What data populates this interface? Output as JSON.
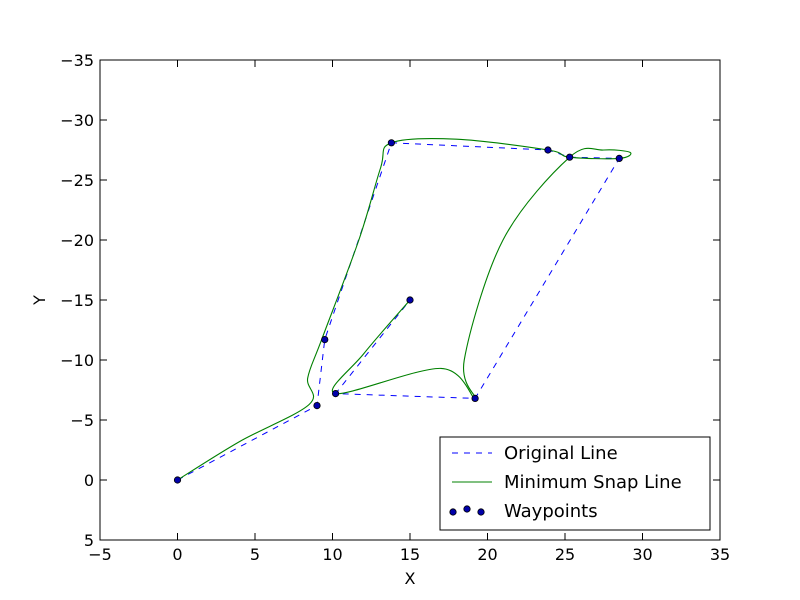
{
  "chart_data": {
    "type": "line",
    "xlabel": "X",
    "ylabel": "Y",
    "xlim": [
      -5,
      35
    ],
    "ylim": [
      5,
      -35
    ],
    "y_inverted": true,
    "xticks": [
      -5,
      0,
      5,
      10,
      15,
      20,
      25,
      30,
      35
    ],
    "yticks": [
      5,
      0,
      -5,
      -10,
      -15,
      -20,
      -25,
      -30,
      -35
    ],
    "xtick_labels": [
      "−5",
      "0",
      "5",
      "10",
      "15",
      "20",
      "25",
      "30",
      "35"
    ],
    "ytick_labels": [
      "5",
      "0",
      "−5",
      "−10",
      "−15",
      "−20",
      "−25",
      "−30",
      "−35"
    ],
    "grid": false,
    "legend_position": "bottom-right",
    "series": [
      {
        "name": "Original Line",
        "style": "dashed",
        "color": "#0000ff",
        "x": [
          0,
          9,
          9.5,
          13.8,
          23.9,
          25.3,
          28.5,
          19.2,
          10.2,
          15
        ],
        "y": [
          0,
          -6.2,
          -11.7,
          -28.1,
          -27.5,
          -26.9,
          -26.8,
          -6.8,
          -7.2,
          -15
        ]
      },
      {
        "name": "Minimum Snap Line",
        "style": "solid",
        "color": "#008000",
        "x": [
          0,
          4,
          8.5,
          8.4,
          9.3,
          11.7,
          13.1,
          13.8,
          18,
          23.9,
          25.3,
          28.5,
          29.2,
          27.5,
          25.3,
          21,
          18.5,
          19.2,
          17,
          10.2,
          12,
          15
        ],
        "y": [
          0,
          -3.2,
          -6.3,
          -8.5,
          -11.7,
          -20,
          -26,
          -28.1,
          -28.4,
          -27.5,
          -26.9,
          -26.8,
          -27.3,
          -27.5,
          -26.9,
          -20,
          -10,
          -6.8,
          -9.3,
          -7.2,
          -10.5,
          -15
        ]
      },
      {
        "name": "Waypoints",
        "style": "scatter",
        "color": "#0000aa",
        "x": [
          0,
          9,
          9.5,
          13.8,
          23.9,
          25.3,
          28.5,
          19.2,
          10.2,
          15
        ],
        "y": [
          0,
          -6.2,
          -11.7,
          -28.1,
          -27.5,
          -26.9,
          -26.8,
          -6.8,
          -7.2,
          -15
        ]
      }
    ]
  }
}
